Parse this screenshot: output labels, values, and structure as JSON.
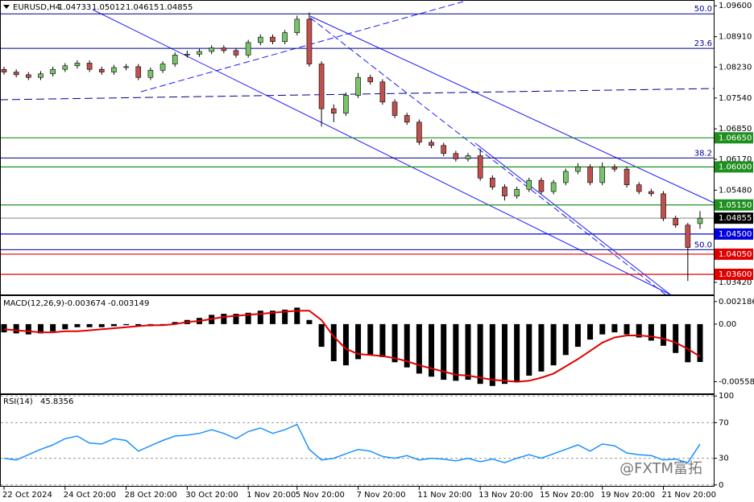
{
  "chart_data": {
    "type": "candlestick",
    "title": "EURUSD,H4",
    "categories": [
      "22 Oct 2024",
      null,
      null,
      null,
      null,
      "24 Oct 20:00",
      null,
      null,
      null,
      null,
      "28 Oct 20:00",
      null,
      null,
      null,
      null,
      "30 Oct 20:00",
      null,
      null,
      null,
      null,
      "1 Nov 20:00",
      null,
      null,
      null,
      "5 Nov 20:00",
      null,
      null,
      null,
      null,
      "7 Nov 20:00",
      null,
      null,
      null,
      null,
      "11 Nov 20:00",
      null,
      null,
      null,
      null,
      "13 Nov 20:00",
      null,
      null,
      null,
      null,
      "15 Nov 20:00",
      null,
      null,
      null,
      null,
      "19 Nov 20:00",
      null,
      null,
      null,
      null,
      "21 Nov 20:00",
      null,
      null,
      null
    ],
    "open": [
      1.0818,
      1.0812,
      1.0806,
      1.08,
      1.0808,
      1.0818,
      1.0826,
      1.0832,
      1.0818,
      1.0812,
      1.0822,
      1.0824,
      1.08,
      1.0816,
      1.083,
      1.085,
      1.0852,
      1.0858,
      1.0866,
      1.086,
      1.085,
      1.0878,
      1.089,
      1.088,
      1.09,
      1.093,
      1.083,
      1.073,
      1.072,
      1.076,
      1.08,
      1.079,
      1.0745,
      1.0715,
      1.07,
      1.0655,
      1.0648,
      1.063,
      1.0618,
      1.0625,
      1.0575,
      1.0555,
      1.0535,
      1.055,
      1.057,
      1.0545,
      1.0565,
      1.059,
      1.06,
      1.0565,
      1.06,
      1.0595,
      1.056,
      1.0545,
      1.054,
      1.0485,
      1.047,
      1.04733
    ],
    "high": [
      1.0824,
      1.0818,
      1.0812,
      1.0814,
      1.0824,
      1.0832,
      1.0838,
      1.0838,
      1.0824,
      1.0828,
      1.083,
      1.083,
      1.0822,
      1.0836,
      1.0856,
      1.086,
      1.0864,
      1.0872,
      1.0872,
      1.0866,
      1.0884,
      1.0896,
      1.0896,
      1.0906,
      1.0938,
      1.0945,
      1.0836,
      1.074,
      1.0766,
      1.081,
      1.0806,
      1.0796,
      1.0751,
      1.0721,
      1.0706,
      1.0661,
      1.0654,
      1.0636,
      1.0631,
      1.064,
      1.0581,
      1.0561,
      1.0556,
      1.0576,
      1.0576,
      1.0571,
      1.0596,
      1.0608,
      1.0606,
      1.061,
      1.0606,
      1.0601,
      1.0566,
      1.0551,
      1.0546,
      1.0491,
      1.0475,
      1.05012
    ],
    "low": [
      1.0806,
      1.08,
      1.0794,
      1.0794,
      1.0802,
      1.0812,
      1.082,
      1.0812,
      1.0806,
      1.0806,
      1.0816,
      1.0794,
      1.0794,
      1.081,
      1.0824,
      1.0844,
      1.0846,
      1.0852,
      1.0854,
      1.0844,
      1.0844,
      1.0872,
      1.0874,
      1.0874,
      1.0894,
      1.0824,
      1.069,
      1.07,
      1.0714,
      1.0754,
      1.0784,
      1.0739,
      1.0709,
      1.0694,
      1.0649,
      1.0642,
      1.0624,
      1.0612,
      1.0612,
      1.0569,
      1.0549,
      1.0525,
      1.0529,
      1.0544,
      1.0539,
      1.0539,
      1.0559,
      1.0584,
      1.0559,
      1.0559,
      1.0589,
      1.0554,
      1.0539,
      1.0534,
      1.0479,
      1.0464,
      1.0345,
      1.04615
    ],
    "close": [
      1.0812,
      1.0806,
      1.08,
      1.0808,
      1.0818,
      1.0826,
      1.0832,
      1.0818,
      1.0812,
      1.0822,
      1.0824,
      1.08,
      1.0816,
      1.083,
      1.085,
      1.0852,
      1.0858,
      1.0866,
      1.086,
      1.085,
      1.0878,
      1.089,
      1.088,
      1.09,
      1.093,
      1.083,
      1.073,
      1.072,
      1.076,
      1.08,
      1.079,
      1.0745,
      1.0715,
      1.07,
      1.0655,
      1.0648,
      1.063,
      1.0618,
      1.0625,
      1.0575,
      1.0555,
      1.0535,
      1.055,
      1.057,
      1.0545,
      1.0565,
      1.059,
      1.06,
      1.0565,
      1.06,
      1.0595,
      1.056,
      1.0545,
      1.054,
      1.0485,
      1.047,
      1.042,
      1.04855
    ],
    "up_color": "#78c46a",
    "down_color": "#c0504d",
    "ylim": [
      1.0315,
      1.0973
    ],
    "yticks": [
      {
        "value": 1.096,
        "label": "1.09600"
      },
      {
        "value": 1.0891,
        "label": "1.08910"
      },
      {
        "value": 1.0823,
        "label": "1.08230"
      },
      {
        "value": 1.0754,
        "label": "1.07540"
      },
      {
        "value": 1.0685,
        "label": "1.06850"
      },
      {
        "value": 1.0617,
        "label": "1.06170"
      },
      {
        "value": 1.0548,
        "label": "1.05480"
      },
      {
        "value": 1.0342,
        "label": "1.03420"
      }
    ],
    "last_price": {
      "value": 1.04855,
      "label": "1.04855"
    },
    "levels": [
      {
        "value": 1.0665,
        "label": "1.06650",
        "color": "#1f8f1f"
      },
      {
        "value": 1.06,
        "label": "1.06000",
        "color": "#1f8f1f"
      },
      {
        "value": 1.0515,
        "label": "1.05150",
        "color": "#1f8f1f"
      },
      {
        "value": 1.045,
        "label": "1.04500",
        "color": "#0000dd"
      },
      {
        "value": 1.0405,
        "label": "1.04050",
        "color": "#e00000"
      },
      {
        "value": 1.036,
        "label": "1.03600",
        "color": "#e00000"
      }
    ],
    "fib_levels": [
      {
        "value": 1.0942,
        "label": "50.0"
      },
      {
        "value": 1.0865,
        "label": "23.6"
      },
      {
        "value": 1.062,
        "label": "38.2"
      },
      {
        "value": 1.0415,
        "label": "50.0"
      }
    ],
    "fib_color": "#00008b",
    "macd": {
      "label": "MACD(12,26,9)",
      "histogram": [
        -0.0008,
        -0.0009,
        -0.001,
        -0.0009,
        -0.0007,
        -0.0005,
        -0.0003,
        -0.0003,
        -0.0003,
        -0.0002,
        -0.0001,
        -0.0002,
        -0.0002,
        -0.0001,
        0.0002,
        0.0004,
        0.0006,
        0.0009,
        0.001,
        0.001,
        0.0011,
        0.0013,
        0.0013,
        0.0014,
        0.0016,
        0.0004,
        -0.0022,
        -0.0036,
        -0.004,
        -0.0034,
        -0.003,
        -0.0032,
        -0.0037,
        -0.0042,
        -0.0048,
        -0.0051,
        -0.0054,
        -0.0055,
        -0.0054,
        -0.0058,
        -0.006,
        -0.0058,
        -0.0056,
        -0.005,
        -0.0046,
        -0.004,
        -0.003,
        -0.0022,
        -0.0015,
        -0.001,
        -0.0008,
        -0.001,
        -0.0013,
        -0.0016,
        -0.0021,
        -0.0028,
        -0.0037,
        -0.003674
      ],
      "signal": [
        -0.0005,
        -0.0006,
        -0.0007,
        -0.0008,
        -0.0008,
        -0.0007,
        -0.0007,
        -0.0006,
        -0.0005,
        -0.0004,
        -0.0003,
        -0.0002,
        -0.0001,
        -0.0001,
        0.0,
        0.0002,
        0.0003,
        0.0005,
        0.0007,
        0.0008,
        0.0009,
        0.001,
        0.0011,
        0.0012,
        0.0013,
        0.0013,
        0.0004,
        -0.0012,
        -0.0024,
        -0.0029,
        -0.003,
        -0.0031,
        -0.0033,
        -0.0036,
        -0.004,
        -0.0043,
        -0.0046,
        -0.0049,
        -0.005,
        -0.0052,
        -0.0054,
        -0.0055,
        -0.0056,
        -0.0055,
        -0.0052,
        -0.0048,
        -0.0041,
        -0.0034,
        -0.0026,
        -0.0018,
        -0.0013,
        -0.0011,
        -0.0011,
        -0.0012,
        -0.0014,
        -0.0018,
        -0.0024,
        -0.003149
      ],
      "histogram_color": "#000000",
      "signal_color": "#e00000",
      "ylim": [
        -0.0068,
        0.0028
      ],
      "yticks": [
        0.002186,
        {
          "value": 0,
          "label": "0.00"
        },
        -0.005584
      ]
    },
    "rsi": {
      "label": "RSI(14)",
      "values": [
        30,
        28,
        34,
        40,
        45,
        52,
        55,
        47,
        46,
        52,
        50,
        38,
        44,
        50,
        55,
        56,
        58,
        62,
        58,
        52,
        60,
        64,
        58,
        62,
        68,
        40,
        28,
        30,
        35,
        40,
        38,
        32,
        30,
        33,
        28,
        30,
        29,
        27,
        30,
        26,
        29,
        25,
        30,
        34,
        30,
        35,
        40,
        45,
        38,
        46,
        44,
        36,
        34,
        33,
        28,
        29,
        25,
        45.8356
      ],
      "color": "#1e90ff",
      "ylim": [
        -2,
        102
      ],
      "yticks": [
        100,
        70,
        30,
        0
      ]
    },
    "watermark": "@FXTM富拓"
  }
}
